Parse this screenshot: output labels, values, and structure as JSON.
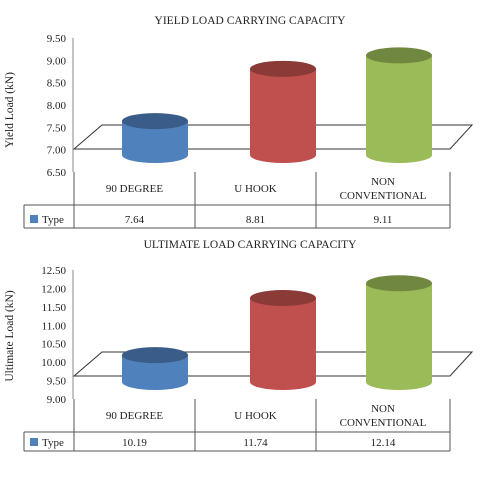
{
  "chart_data": [
    {
      "type": "bar",
      "title": "YIELD LOAD CARRYING CAPACITY",
      "ylabel": "Yield Load (kN)",
      "xlabel": "",
      "categories": [
        "90 DEGREE",
        "U HOOK",
        "NON CONVENTIONAL"
      ],
      "series": [
        {
          "name": "Type",
          "values": [
            7.64,
            8.81,
            9.11
          ]
        }
      ],
      "ylim": [
        6.5,
        9.5
      ],
      "yticks": [
        "6.50",
        "7.00",
        "7.50",
        "8.00",
        "8.50",
        "9.00",
        "9.50"
      ],
      "table_values": [
        "7.64",
        "8.81",
        "9.11"
      ],
      "bar_colors": [
        "#4f81bd",
        "#c0504d",
        "#9bbb59"
      ],
      "grid": false,
      "legend_placement": "data table"
    },
    {
      "type": "bar",
      "title": "ULTIMATE LOAD CARRYING CAPACITY",
      "ylabel": "Ultimate Load (kN)",
      "xlabel": "",
      "categories": [
        "90 DEGREE",
        "U HOOK",
        "NON CONVENTIONAL"
      ],
      "series": [
        {
          "name": "Type",
          "values": [
            10.19,
            11.74,
            12.14
          ]
        }
      ],
      "ylim": [
        9.0,
        12.5
      ],
      "yticks": [
        "9.00",
        "9.50",
        "10.00",
        "10.50",
        "11.00",
        "11.50",
        "12.00",
        "12.50"
      ],
      "table_values": [
        "10.19",
        "11.74",
        "12.14"
      ],
      "bar_colors": [
        "#4f81bd",
        "#c0504d",
        "#9bbb59"
      ],
      "grid": false,
      "legend_placement": "data table"
    }
  ]
}
